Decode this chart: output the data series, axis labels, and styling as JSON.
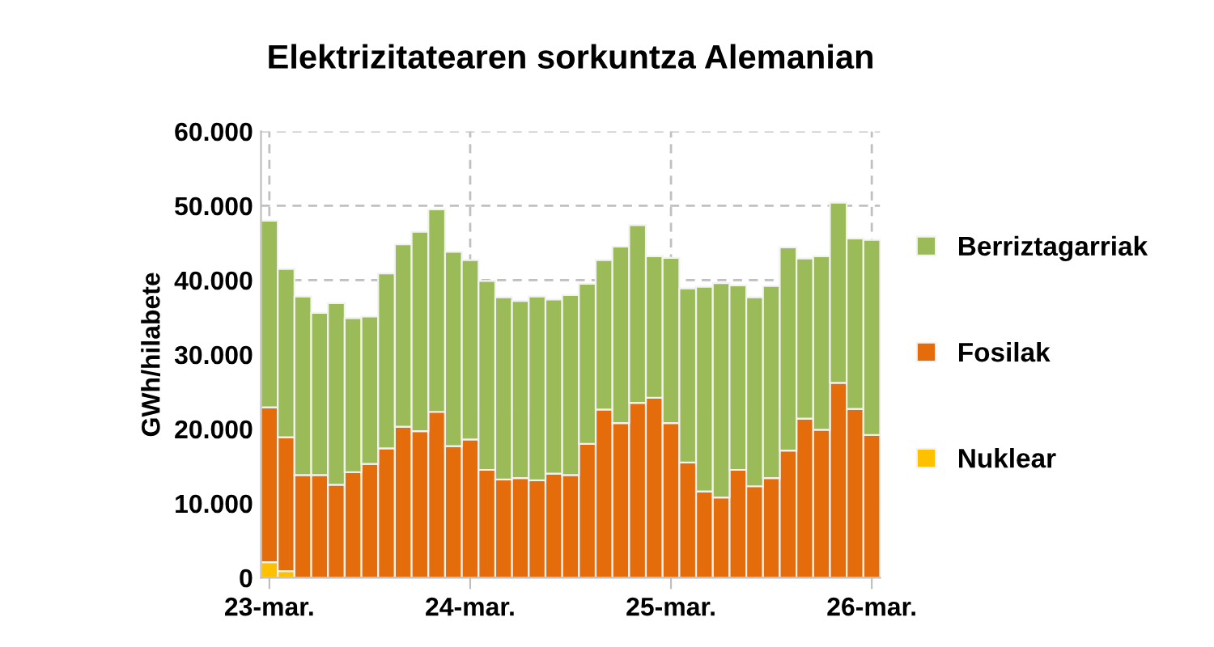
{
  "chart_data": {
    "type": "bar",
    "title": "Elektrizitatearen sorkuntza Alemanian",
    "ylabel": "GWh/hilabete",
    "categories": [
      "23-mar.",
      null,
      null,
      null,
      null,
      null,
      null,
      null,
      null,
      null,
      null,
      null,
      "24-mar.",
      null,
      null,
      null,
      null,
      null,
      null,
      null,
      null,
      null,
      null,
      null,
      "25-mar.",
      null,
      null,
      null,
      null,
      null,
      null,
      null,
      null,
      null,
      null,
      null,
      "26-mar."
    ],
    "stacked": true,
    "series": [
      {
        "name": "Nuklear",
        "color": "#ffc000",
        "values": [
          2100,
          900,
          0,
          0,
          0,
          0,
          0,
          0,
          0,
          0,
          0,
          0,
          0,
          0,
          0,
          0,
          0,
          0,
          0,
          0,
          0,
          0,
          0,
          0,
          0,
          0,
          0,
          0,
          0,
          0,
          0,
          0,
          0,
          0,
          0,
          0,
          0
        ]
      },
      {
        "name": "Fosilak",
        "color": "#e46c0a",
        "values": [
          20800,
          18000,
          13800,
          13800,
          12500,
          14200,
          15300,
          17400,
          20300,
          19700,
          22300,
          17700,
          18600,
          14500,
          13200,
          13400,
          13100,
          14000,
          13800,
          18000,
          22600,
          20800,
          23500,
          24200,
          20800,
          15500,
          11600,
          10800,
          14500,
          12300,
          13400,
          17100,
          21400,
          19900,
          26200,
          22700,
          19200
        ]
      },
      {
        "name": "Berriztagarriak",
        "color": "#9bbb59",
        "values": [
          25100,
          22600,
          24000,
          21800,
          24400,
          20700,
          19800,
          23500,
          24500,
          26800,
          27200,
          26100,
          24100,
          25400,
          24500,
          23800,
          24700,
          23400,
          24200,
          21500,
          20100,
          23700,
          23900,
          19000,
          22200,
          23400,
          27500,
          28800,
          24800,
          25400,
          25800,
          27300,
          21500,
          23300,
          24200,
          22900,
          26200
        ]
      }
    ],
    "ylim": [
      0,
      60000
    ],
    "yticks": [
      {
        "value": 0,
        "label": "0"
      },
      {
        "value": 10000,
        "label": "10.000"
      },
      {
        "value": 20000,
        "label": "20.000"
      },
      {
        "value": 30000,
        "label": "30.000"
      },
      {
        "value": 40000,
        "label": "40.000"
      },
      {
        "value": 50000,
        "label": "50.000"
      },
      {
        "value": 60000,
        "label": "60.000"
      }
    ],
    "grid": true,
    "legend": "right"
  }
}
